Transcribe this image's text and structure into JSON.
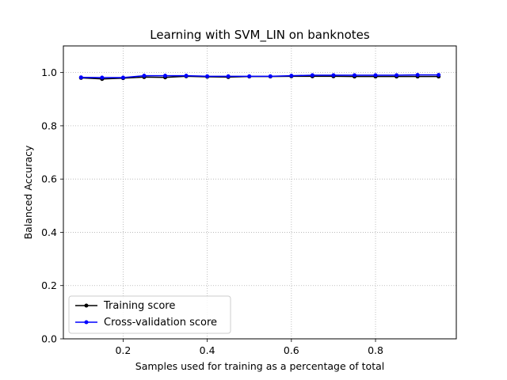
{
  "chart_data": {
    "type": "line",
    "title": "Learning with SVM_LIN on banknotes",
    "xlabel": "Samples used for training as a percentage of total",
    "ylabel": "Balanced Accuracy",
    "xlim": [
      0.058,
      0.992
    ],
    "ylim": [
      0.0,
      1.1
    ],
    "xticks": [
      0.2,
      0.4,
      0.6,
      0.8
    ],
    "xtick_labels": [
      "0.2",
      "0.4",
      "0.6",
      "0.8"
    ],
    "yticks": [
      0.0,
      0.2,
      0.4,
      0.6,
      0.8,
      1.0
    ],
    "ytick_labels": [
      "0.0",
      "0.2",
      "0.4",
      "0.6",
      "0.8",
      "1.0"
    ],
    "grid": true,
    "legend_position": "lower-left",
    "x": [
      0.1,
      0.15,
      0.2,
      0.25,
      0.3,
      0.35,
      0.4,
      0.45,
      0.5,
      0.55,
      0.6,
      0.65,
      0.7,
      0.75,
      0.8,
      0.85,
      0.9,
      0.95
    ],
    "series": [
      {
        "name": "Training score",
        "color": "#000000",
        "values": [
          0.98,
          0.976,
          0.979,
          0.983,
          0.982,
          0.986,
          0.984,
          0.983,
          0.985,
          0.985,
          0.986,
          0.986,
          0.986,
          0.985,
          0.985,
          0.985,
          0.985,
          0.985
        ]
      },
      {
        "name": "Cross-validation score",
        "color": "#0000ff",
        "values": [
          0.982,
          0.981,
          0.981,
          0.988,
          0.988,
          0.988,
          0.986,
          0.986,
          0.986,
          0.986,
          0.988,
          0.99,
          0.99,
          0.99,
          0.99,
          0.99,
          0.991,
          0.991
        ]
      }
    ]
  }
}
